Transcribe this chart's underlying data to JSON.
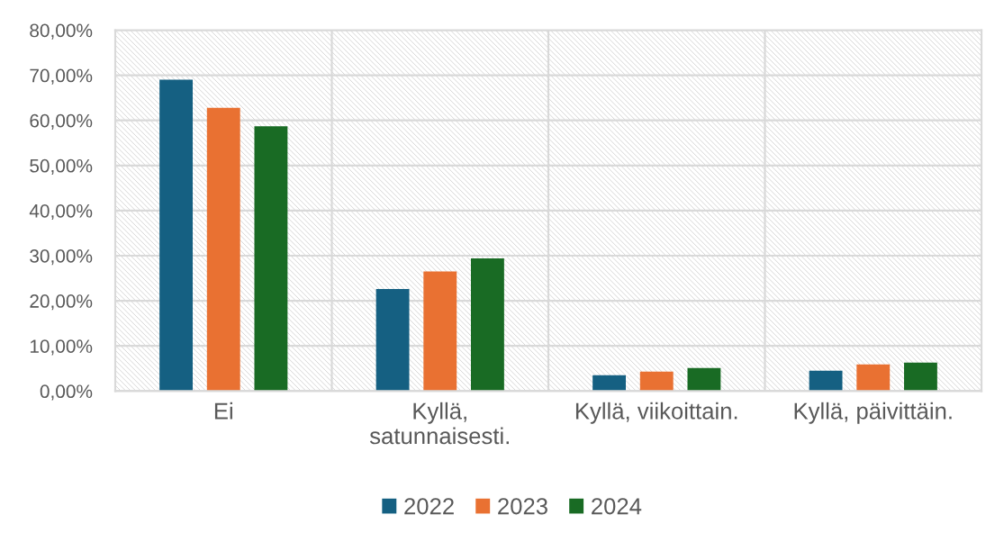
{
  "chart_data": {
    "type": "bar",
    "categories": [
      "Ei",
      "Kyllä,\nsatunnaisesti.",
      "Kyllä, viikoittain.",
      "Kyllä, päivittäin."
    ],
    "series": [
      {
        "name": "2022",
        "color": "#156082",
        "values": [
          69.0,
          22.6,
          3.5,
          4.5
        ]
      },
      {
        "name": "2023",
        "color": "#e97132",
        "values": [
          62.8,
          26.5,
          4.3,
          5.9
        ]
      },
      {
        "name": "2024",
        "color": "#196b24",
        "values": [
          58.7,
          29.4,
          5.1,
          6.3
        ]
      }
    ],
    "ylim": [
      0,
      80
    ],
    "yticks": [
      {
        "value": 0,
        "label": "0,00%"
      },
      {
        "value": 10,
        "label": "10,00%"
      },
      {
        "value": 20,
        "label": "20,00%"
      },
      {
        "value": 30,
        "label": "30,00%"
      },
      {
        "value": 40,
        "label": "40,00%"
      },
      {
        "value": 50,
        "label": "50,00%"
      },
      {
        "value": 60,
        "label": "60,00%"
      },
      {
        "value": 70,
        "label": "70,00%"
      },
      {
        "value": 80,
        "label": "80,00%"
      }
    ],
    "grid": true,
    "legend": "bottom"
  }
}
